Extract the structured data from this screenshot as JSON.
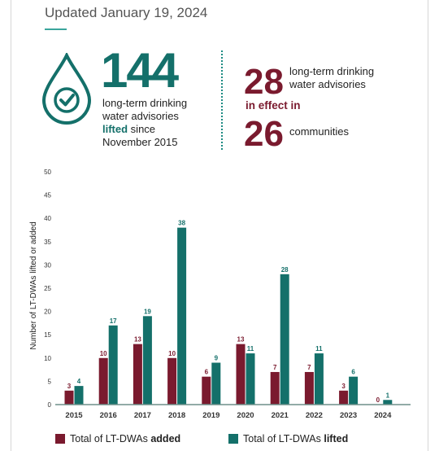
{
  "header": {
    "updated": "Updated January 19, 2024"
  },
  "colors": {
    "added": "#7a1a2e",
    "lifted": "#14706a",
    "accent": "#1c8a82",
    "teal_light": "#3aa59c"
  },
  "icon": "water-drop-check-icon",
  "stats": {
    "lifted": {
      "number": "144",
      "line1": "long-term drinking",
      "line2": "water advisories",
      "line3_bold": "lifted",
      "line3_rest": " since",
      "line4": "November 2015"
    },
    "in_effect": {
      "number": "28",
      "line1": "long-term drinking",
      "line2": "water advisories",
      "mid": "in effect in",
      "communities_number": "26",
      "communities_label": "communities"
    }
  },
  "chart_data": {
    "type": "bar",
    "categories": [
      "2015",
      "2016",
      "2017",
      "2018",
      "2019",
      "2020",
      "2021",
      "2022",
      "2023",
      "2024"
    ],
    "series": [
      {
        "name": "Total of LT-DWAs added",
        "values": [
          3,
          10,
          13,
          10,
          6,
          13,
          7,
          7,
          3,
          0
        ]
      },
      {
        "name": "Total of LT-DWAs lifted",
        "values": [
          4,
          17,
          19,
          38,
          9,
          11,
          28,
          11,
          6,
          1
        ]
      }
    ],
    "ylabel": "Number of LT-DWAs lifted or added",
    "xlabel": "",
    "ylim": [
      0,
      50
    ],
    "yticks": [
      0,
      5,
      10,
      15,
      20,
      25,
      30,
      35,
      40,
      45,
      50
    ],
    "grid": false,
    "legend_position": "bottom"
  },
  "legend": {
    "added_prefix": "Total of LT-DWAs ",
    "added_bold": "added",
    "lifted_prefix": "Total of LT-DWAs ",
    "lifted_bold": "lifted"
  }
}
